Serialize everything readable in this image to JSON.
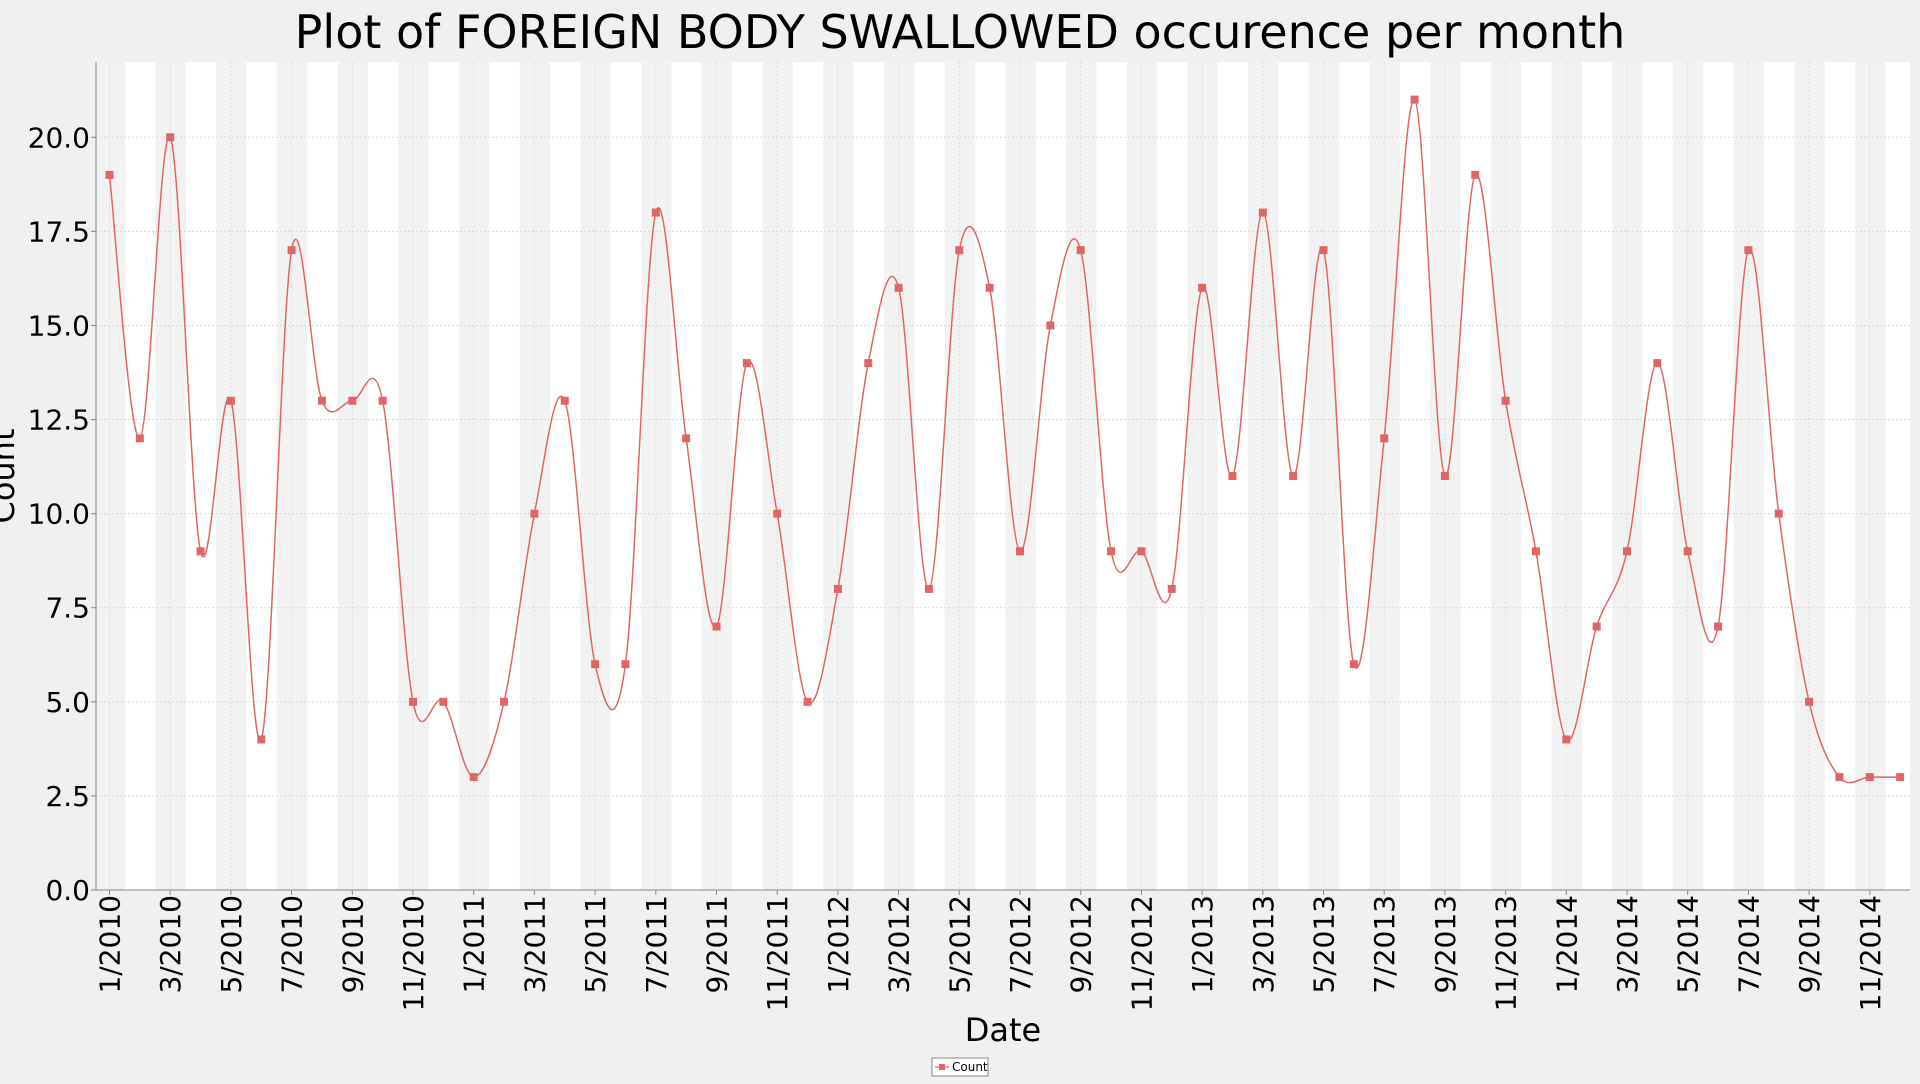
{
  "chart_data": {
    "type": "line",
    "title": "Plot of FOREIGN BODY SWALLOWED occurence per month",
    "xlabel": "Date",
    "ylabel": "Count",
    "ylim": [
      0,
      22
    ],
    "yticks": [
      "0.0",
      "2.5",
      "5.0",
      "7.5",
      "10.0",
      "12.5",
      "15.0",
      "17.5",
      "20.0"
    ],
    "ytick_values": [
      0,
      2.5,
      5,
      7.5,
      10,
      12.5,
      15,
      17.5,
      20
    ],
    "xticks": [
      "1/2010",
      "3/2010",
      "5/2010",
      "7/2010",
      "9/2010",
      "11/2010",
      "1/2011",
      "3/2011",
      "5/2011",
      "7/2011",
      "9/2011",
      "11/2011",
      "1/2012",
      "3/2012",
      "5/2012",
      "7/2012",
      "9/2012",
      "11/2012",
      "1/2013",
      "3/2013",
      "5/2013",
      "7/2013",
      "9/2013",
      "11/2013",
      "1/2014",
      "3/2014",
      "5/2014",
      "7/2014",
      "9/2014",
      "11/2014"
    ],
    "grid": true,
    "legend_position": "bottom-center",
    "series_color": "#e06666",
    "band_color": "#f2f2f2",
    "series": [
      {
        "name": "Count",
        "values": [
          19,
          12,
          20,
          9,
          13,
          4,
          17,
          13,
          13,
          13,
          5,
          5,
          3,
          5,
          10,
          13,
          6,
          6,
          18,
          12,
          7,
          14,
          10,
          5,
          8,
          14,
          16,
          8,
          17,
          16,
          9,
          15,
          17,
          9,
          9,
          8,
          16,
          11,
          18,
          11,
          17,
          6,
          12,
          21,
          11,
          19,
          13,
          9,
          4,
          7,
          9,
          14,
          9,
          7,
          17,
          10,
          5,
          3,
          3,
          3
        ]
      }
    ]
  }
}
